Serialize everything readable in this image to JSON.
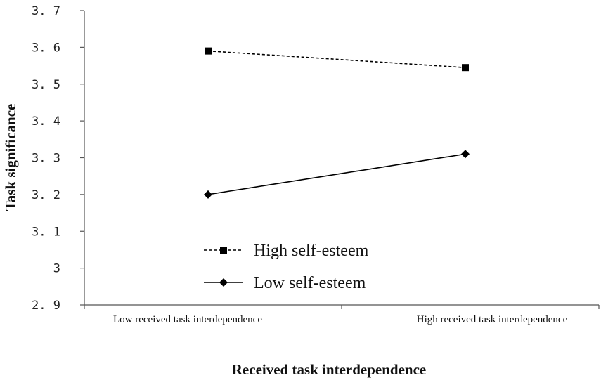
{
  "chart_data": {
    "type": "line",
    "title": "",
    "xlabel": "Received task interdependence",
    "ylabel": "Task significance",
    "categories": [
      "Low received task interdependence",
      "High received task interdependence"
    ],
    "ylim": [
      2.9,
      3.7
    ],
    "yticks": [
      "2. 9",
      "3",
      "3. 1",
      "3. 2",
      "3. 3",
      "3. 4",
      "3. 5",
      "3. 6",
      "3. 7"
    ],
    "ytick_values": [
      2.9,
      3.0,
      3.1,
      3.2,
      3.3,
      3.4,
      3.5,
      3.6,
      3.7
    ],
    "grid": false,
    "legend_position": "bottom-left",
    "series": [
      {
        "name": "High self-esteem",
        "values": [
          3.59,
          3.545
        ],
        "line_style": "dashed",
        "marker": "square",
        "color": "#000000"
      },
      {
        "name": "Low self-esteem",
        "values": [
          3.2,
          3.31
        ],
        "line_style": "solid",
        "marker": "diamond",
        "color": "#000000"
      }
    ]
  }
}
